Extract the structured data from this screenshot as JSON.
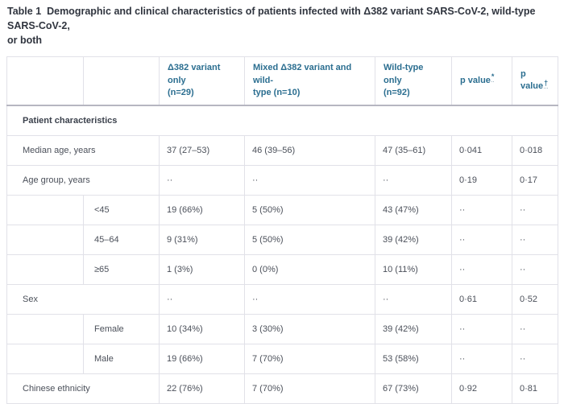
{
  "title": "Table 1  Demographic and clinical characteristics of patients infected with Δ382 variant SARS-CoV-2, wild-type SARS-CoV-2,\nor both",
  "table": {
    "columns": [
      {
        "text": "",
        "marker": ""
      },
      {
        "text": "",
        "marker": ""
      },
      {
        "text": "Δ382 variant only\n(n=29)",
        "marker": ""
      },
      {
        "text": "Mixed Δ382 variant and wild-\ntype (n=10)",
        "marker": ""
      },
      {
        "text": "Wild-type only\n(n=92)",
        "marker": ""
      },
      {
        "text": "p value",
        "marker": "*"
      },
      {
        "text": "p value",
        "marker": "†"
      }
    ],
    "rows": [
      {
        "type": "section",
        "label": "Patient characteristics"
      },
      {
        "type": "main",
        "label": "Median age, years",
        "values": [
          "37 (27–53)",
          "46 (39–56)",
          "47 (35–61)",
          "0·041",
          "0·018"
        ]
      },
      {
        "type": "main",
        "label": "Age group, years",
        "values": [
          "··",
          "··",
          "··",
          "0·19",
          "0·17"
        ]
      },
      {
        "type": "sub",
        "label": "<45",
        "values": [
          "19 (66%)",
          "5 (50%)",
          "43 (47%)",
          "··",
          "··"
        ]
      },
      {
        "type": "sub",
        "label": "45–64",
        "values": [
          "9 (31%)",
          "5 (50%)",
          "39 (42%)",
          "··",
          "··"
        ]
      },
      {
        "type": "sub",
        "label": "≥65",
        "values": [
          "1 (3%)",
          "0 (0%)",
          "10 (11%)",
          "··",
          "··"
        ]
      },
      {
        "type": "main",
        "label": "Sex",
        "values": [
          "··",
          "··",
          "··",
          "0·61",
          "0·52"
        ]
      },
      {
        "type": "sub",
        "label": "Female",
        "values": [
          "10 (34%)",
          "3 (30%)",
          "39 (42%)",
          "··",
          "··"
        ]
      },
      {
        "type": "sub",
        "label": "Male",
        "values": [
          "19 (66%)",
          "7 (70%)",
          "53 (58%)",
          "··",
          "··"
        ]
      },
      {
        "type": "main",
        "label": "Chinese ethnicity",
        "values": [
          "22 (76%)",
          "7 (70%)",
          "67 (73%)",
          "0·92",
          "0·81"
        ]
      }
    ]
  },
  "colors": {
    "header_text": "#2b6e90",
    "body_text": "#4b505a",
    "title_text": "#30353f",
    "cell_border": "#e1e1e8",
    "header_bottom_border": "#b6b6c1"
  }
}
